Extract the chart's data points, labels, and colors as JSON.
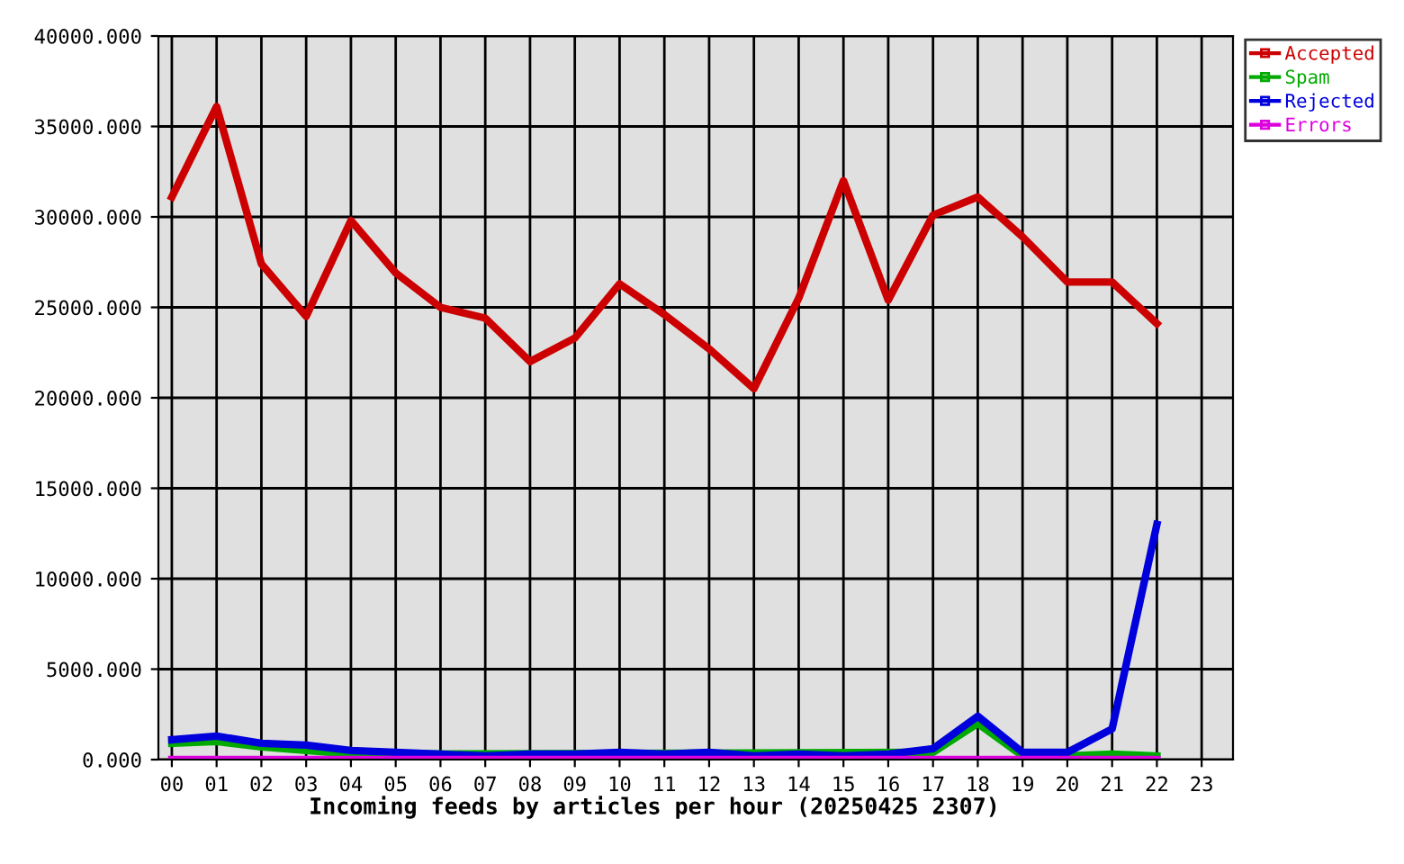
{
  "chart_data": {
    "type": "line",
    "xlabel": "Incoming feeds by articles per hour (20250425 2307)",
    "categories": [
      "00",
      "01",
      "02",
      "03",
      "04",
      "05",
      "06",
      "07",
      "08",
      "09",
      "10",
      "11",
      "12",
      "13",
      "14",
      "15",
      "16",
      "17",
      "18",
      "19",
      "20",
      "21",
      "22",
      "23"
    ],
    "series": [
      {
        "name": "Accepted",
        "color": "#cc0000",
        "values": [
          31100,
          36100,
          27400,
          24500,
          29800,
          26900,
          25000,
          24400,
          22000,
          23300,
          26300,
          24600,
          22700,
          20500,
          25500,
          32000,
          25400,
          30100,
          31100,
          28900,
          26400,
          26400,
          24100,
          null
        ]
      },
      {
        "name": "Spam",
        "color": "#00aa00",
        "values": [
          900,
          1000,
          700,
          500,
          300,
          null,
          null,
          null,
          null,
          null,
          null,
          null,
          null,
          null,
          null,
          null,
          null,
          400,
          2000,
          200,
          200,
          300,
          200,
          null
        ]
      },
      {
        "name": "Rejected",
        "color": "#0000dd",
        "values": [
          1100,
          1300,
          900,
          800,
          500,
          400,
          300,
          200,
          300,
          300,
          400,
          300,
          400,
          200,
          300,
          200,
          300,
          600,
          2400,
          400,
          400,
          1700,
          13000,
          null
        ]
      },
      {
        "name": "Errors",
        "color": "#dd00dd",
        "values": [
          0,
          0,
          0,
          0,
          0,
          0,
          0,
          0,
          0,
          0,
          0,
          0,
          0,
          0,
          0,
          0,
          0,
          0,
          0,
          0,
          0,
          0,
          0,
          null
        ]
      }
    ],
    "ylim": [
      0,
      40000
    ],
    "yticks": [
      {
        "value": 0,
        "label": "0.000"
      },
      {
        "value": 5000,
        "label": "5000.000"
      },
      {
        "value": 10000,
        "label": "10000.000"
      },
      {
        "value": 15000,
        "label": "15000.000"
      },
      {
        "value": 20000,
        "label": "20000.000"
      },
      {
        "value": 25000,
        "label": "25000.000"
      },
      {
        "value": 30000,
        "label": "30000.000"
      },
      {
        "value": 35000,
        "label": "35000.000"
      },
      {
        "value": 40000,
        "label": "40000.000"
      }
    ],
    "grid": true,
    "legend": "top right",
    "marker": "none",
    "line_style": "solid"
  }
}
